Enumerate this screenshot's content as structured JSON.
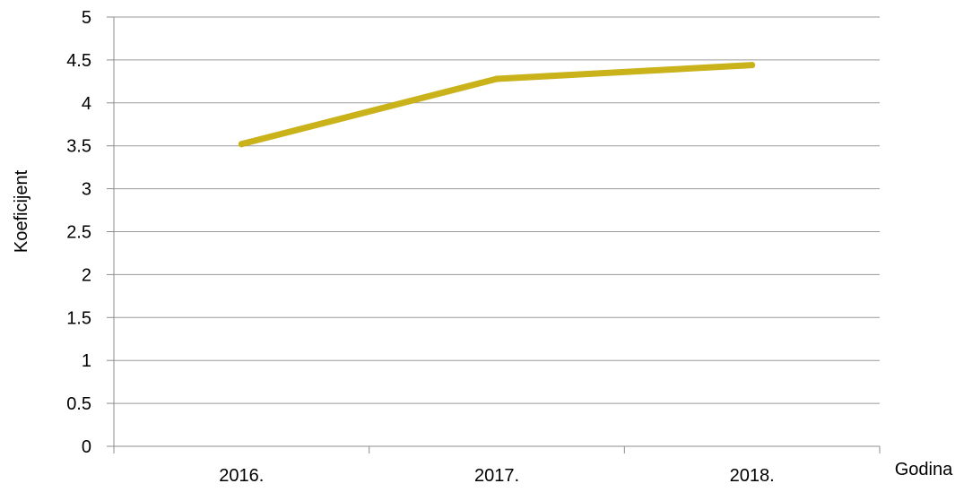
{
  "chart_data": {
    "type": "line",
    "title": "",
    "xlabel": "Godina",
    "ylabel": "Koeficijent",
    "categories": [
      "2016.",
      "2017.",
      "2018."
    ],
    "series": [
      {
        "values": [
          3.52,
          4.28,
          4.44
        ]
      }
    ],
    "ylim": [
      0,
      5
    ],
    "yticks": [
      "0",
      "0.5",
      "1",
      "1.5",
      "2",
      "2.5",
      "3",
      "3.5",
      "4",
      "4.5",
      "5"
    ],
    "grid": true,
    "legend": "none",
    "colors": {
      "line": "#C9B21A",
      "grid": "#9a9a9a",
      "axis": "#8c8c8c"
    }
  }
}
